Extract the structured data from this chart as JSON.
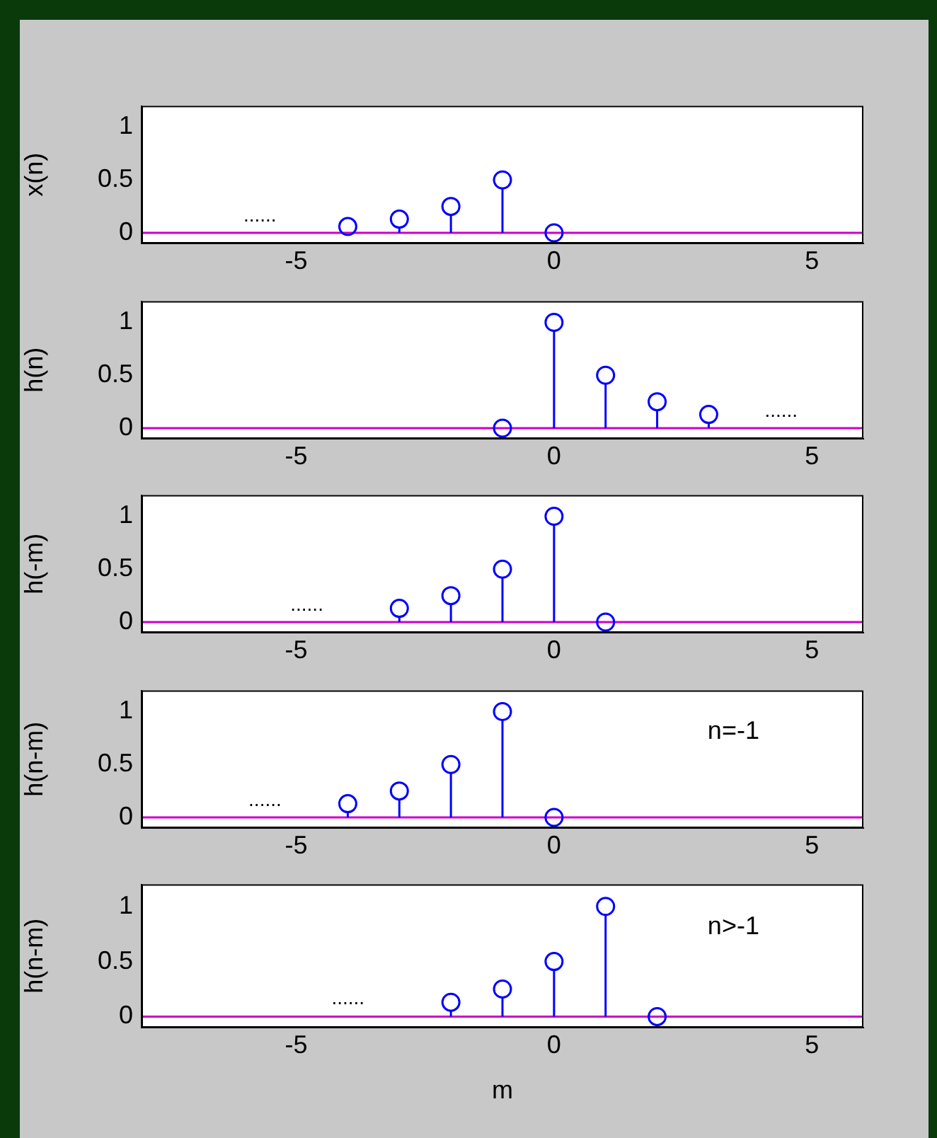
{
  "chart_data": [
    {
      "type": "lollipop",
      "ylabel": "x(n)",
      "x": [
        -4,
        -3,
        -2,
        -1,
        0
      ],
      "values": [
        0.06,
        0.13,
        0.25,
        0.5,
        0
      ],
      "color": "#0000ff",
      "marker": "circle",
      "xlim": [
        -8,
        6
      ],
      "ylim": [
        -0.1,
        1.2
      ],
      "xticks": [
        -5,
        0,
        5
      ],
      "yticks": [
        0,
        0.5,
        1
      ],
      "grid": false,
      "ref_lines": [
        {
          "axis": "y",
          "value": 0,
          "color": "#cc00cc"
        }
      ],
      "annotations": [
        "......"
      ]
    },
    {
      "type": "lollipop",
      "ylabel": "h(n)",
      "x": [
        -1,
        0,
        1,
        2,
        3
      ],
      "values": [
        0,
        1,
        0.5,
        0.25,
        0.13
      ],
      "color": "#0000ff",
      "marker": "circle",
      "xlim": [
        -8,
        6
      ],
      "ylim": [
        -0.1,
        1.2
      ],
      "xticks": [
        -5,
        0,
        5
      ],
      "yticks": [
        0,
        0.5,
        1
      ],
      "grid": false,
      "ref_lines": [
        {
          "axis": "y",
          "value": 0,
          "color": "#cc00cc"
        }
      ],
      "annotations": [
        "......"
      ]
    },
    {
      "type": "lollipop",
      "ylabel": "h(-m)",
      "x": [
        -3,
        -2,
        -1,
        0,
        1
      ],
      "values": [
        0.13,
        0.25,
        0.5,
        1,
        0
      ],
      "color": "#0000ff",
      "marker": "circle",
      "xlim": [
        -8,
        6
      ],
      "ylim": [
        -0.1,
        1.2
      ],
      "xticks": [
        -5,
        0,
        5
      ],
      "yticks": [
        0,
        0.5,
        1
      ],
      "grid": false,
      "ref_lines": [
        {
          "axis": "y",
          "value": 0,
          "color": "#cc00cc"
        }
      ],
      "annotations": [
        "......"
      ]
    },
    {
      "type": "lollipop",
      "ylabel": "h(n-m)",
      "x": [
        -4,
        -3,
        -2,
        -1,
        0
      ],
      "values": [
        0.13,
        0.25,
        0.5,
        1,
        0
      ],
      "color": "#0000ff",
      "marker": "circle",
      "xlim": [
        -8,
        6
      ],
      "ylim": [
        -0.1,
        1.2
      ],
      "xticks": [
        -5,
        0,
        5
      ],
      "yticks": [
        0,
        0.5,
        1
      ],
      "grid": false,
      "ref_lines": [
        {
          "axis": "y",
          "value": 0,
          "color": "#cc00cc"
        }
      ],
      "annotations": [
        "......",
        "n=-1"
      ]
    },
    {
      "type": "lollipop",
      "ylabel": "h(n-m)",
      "xlabel": "m",
      "x": [
        -2,
        -1,
        0,
        1,
        2
      ],
      "values": [
        0.13,
        0.25,
        0.5,
        1,
        0
      ],
      "color": "#0000ff",
      "marker": "circle",
      "xlim": [
        -8,
        6
      ],
      "ylim": [
        -0.1,
        1.2
      ],
      "xticks": [
        -5,
        0,
        5
      ],
      "yticks": [
        0,
        0.5,
        1
      ],
      "grid": false,
      "ref_lines": [
        {
          "axis": "y",
          "value": 0,
          "color": "#cc00cc"
        }
      ],
      "annotations": [
        "......",
        "n>-1"
      ]
    }
  ]
}
